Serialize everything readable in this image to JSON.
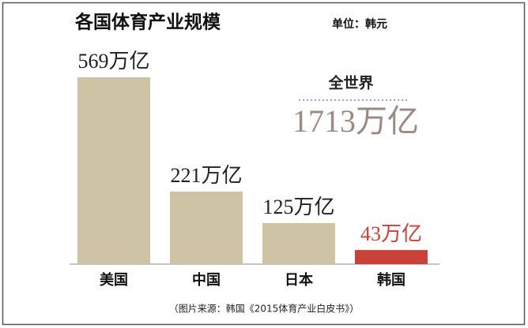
{
  "chart_data": {
    "type": "bar",
    "title": "各国体育产业规模",
    "unit": "单位：韩元",
    "categories": [
      "美国",
      "中国",
      "日本",
      "韩国"
    ],
    "values": [
      569,
      221,
      125,
      43
    ],
    "value_labels": [
      "569万亿",
      "221万亿",
      "125万亿",
      "43万亿"
    ],
    "colors": [
      "#cfc3a5",
      "#cfc3a5",
      "#cfc3a5",
      "#c8423a"
    ],
    "label_colors": [
      "#222222",
      "#222222",
      "#222222",
      "#c8423a"
    ],
    "annotation": {
      "label": "全世界",
      "value_label": "1713万亿"
    },
    "source": "（图片来源：韩国《2015体育产业白皮书》）"
  }
}
